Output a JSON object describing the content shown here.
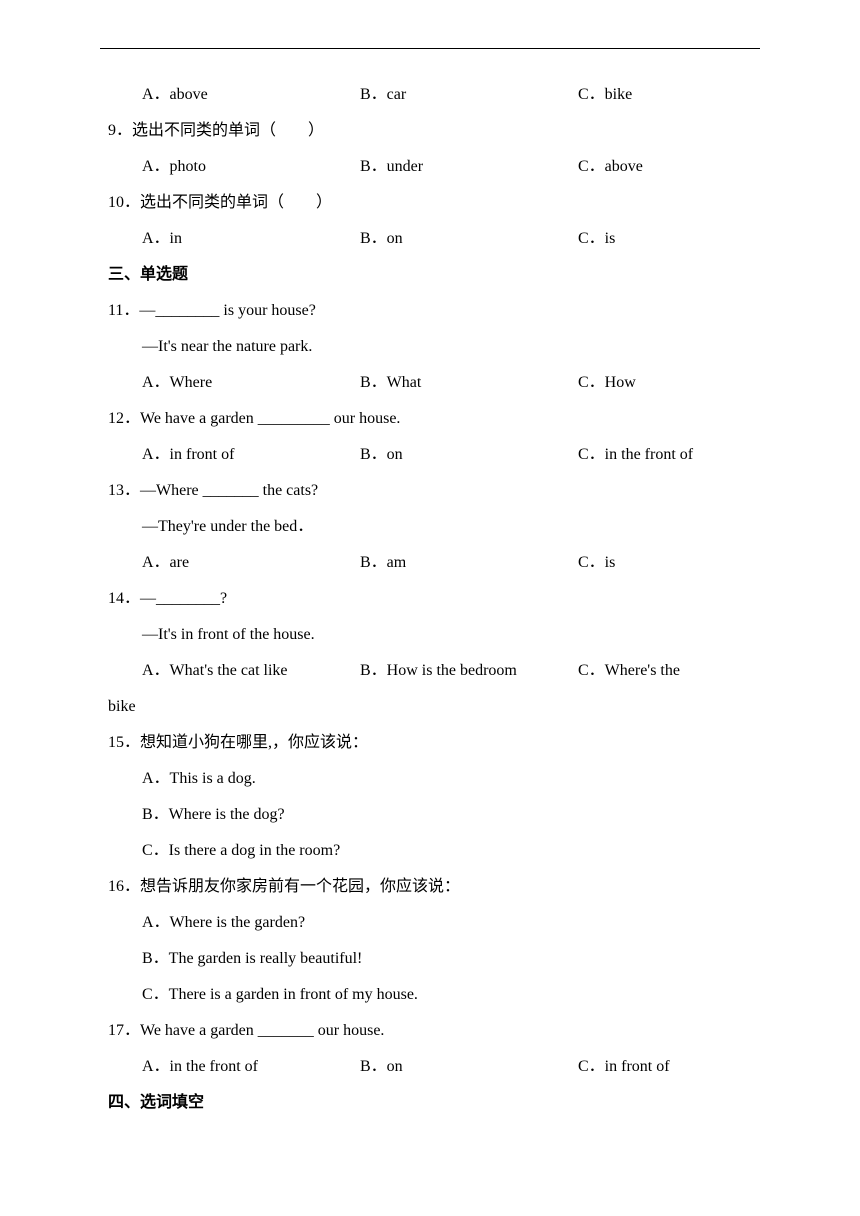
{
  "q8": {
    "optA": "A．above",
    "optB": "B．car",
    "optC": "C．bike"
  },
  "q9": {
    "stem": "9．选出不同类的单词（　　）",
    "optA": "A．photo",
    "optB": "B．under",
    "optC": "C．above"
  },
  "q10": {
    "stem": "10．选出不同类的单词（　　）",
    "optA": "A．in",
    "optB": "B．on",
    "optC": "C．is"
  },
  "section3": "三、单选题",
  "q11": {
    "stem": "11．—________ is your house?",
    "sub": "—It's near the nature park.",
    "optA": "A．Where",
    "optB": "B．What",
    "optC": "C．How"
  },
  "q12": {
    "stem": "12．We have a garden _________ our house.",
    "optA": "A．in front of",
    "optB": "B．on",
    "optC": "C．in the front of"
  },
  "q13": {
    "stem": "13．—Where _______ the cats?",
    "sub": "—They're under the bed．",
    "optA": "A．are",
    "optB": "B．am",
    "optC": "C．is"
  },
  "q14": {
    "stem": "14．—________?",
    "sub": "—It's in front of the house.",
    "optA": "A．What's the cat like",
    "optB": "B．How is the bedroom",
    "optC": "C．Where's the",
    "wrap": "bike"
  },
  "q15": {
    "stem": "15．想知道小狗在哪里,，你应该说：",
    "optA": "A．This is a dog.",
    "optB": "B．Where is the dog?",
    "optC": "C．Is there a dog in the room?"
  },
  "q16": {
    "stem": "16．想告诉朋友你家房前有一个花园，你应该说：",
    "optA": "A．Where is the garden?",
    "optB": "B．The garden is really beautiful!",
    "optC": "C．There is a garden in front of my house."
  },
  "q17": {
    "stem": "17．We have a garden _______ our house.",
    "optA": "A．in the front of",
    "optB": "B．on",
    "optC": "C．in front of"
  },
  "section4": "四、选词填空"
}
